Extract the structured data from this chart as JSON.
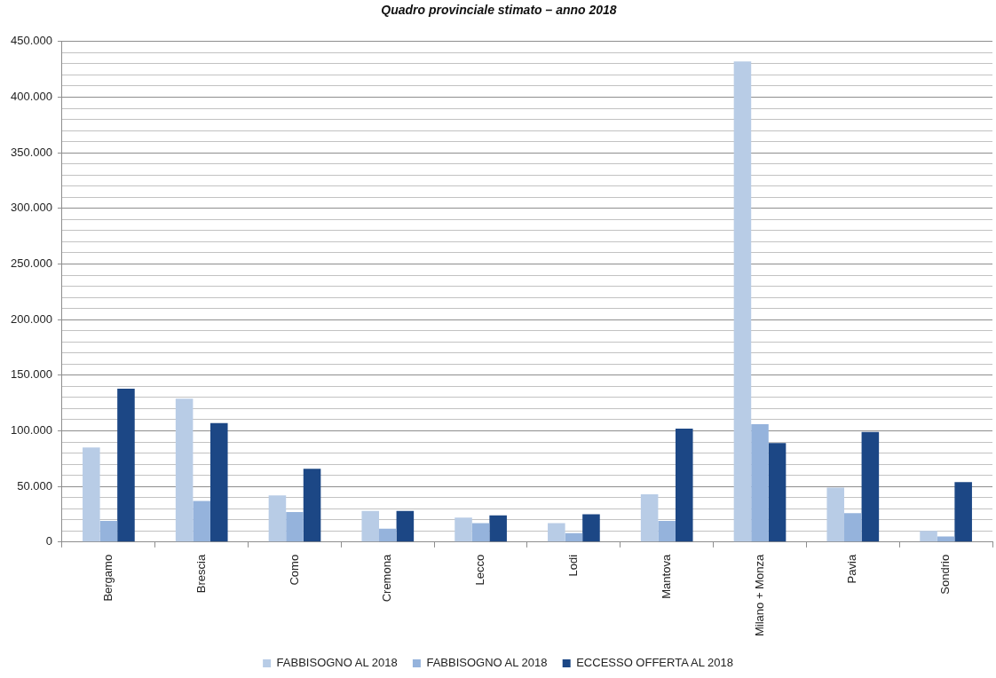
{
  "chart_data": {
    "type": "bar",
    "title": "Quadro provinciale stimato – anno 2018",
    "categories": [
      "Bergamo",
      "Brescia",
      "Como",
      "Cremona",
      "Lecco",
      "Lodi",
      "Mantova",
      "Milano + Monza",
      "Pavia",
      "Sondrio"
    ],
    "series": [
      {
        "name": "FABBISOGNO AL 2018",
        "color": "#b8cce6",
        "values": [
          85000,
          129000,
          42000,
          28000,
          22000,
          17000,
          43000,
          432000,
          49000,
          10000
        ]
      },
      {
        "name": "FABBISOGNO AL 2018",
        "color": "#95b3dc",
        "values": [
          19000,
          37000,
          27000,
          12000,
          17000,
          8000,
          19000,
          106000,
          26000,
          5000
        ]
      },
      {
        "name": "ECCESSO OFFERTA AL 2018",
        "color": "#1c4785",
        "values": [
          138000,
          107000,
          66000,
          28000,
          24000,
          25000,
          102000,
          89000,
          99000,
          54000
        ]
      }
    ],
    "ylim": [
      0,
      450000
    ],
    "yticks": [
      0,
      {
        "value": 10000,
        "label": null
      },
      {
        "value": 20000,
        "label": null
      },
      {
        "value": 30000,
        "label": null
      },
      {
        "value": 40000,
        "label": null
      },
      {
        "value": 50000,
        "label": "50.000"
      },
      {
        "value": 60000,
        "label": null
      },
      {
        "value": 70000,
        "label": null
      },
      {
        "value": 80000,
        "label": null
      },
      {
        "value": 90000,
        "label": null
      },
      {
        "value": 100000,
        "label": "100.000"
      },
      {
        "value": 110000,
        "label": null
      },
      {
        "value": 120000,
        "label": null
      },
      {
        "value": 130000,
        "label": null
      },
      {
        "value": 140000,
        "label": null
      },
      {
        "value": 150000,
        "label": "150.000"
      },
      {
        "value": 160000,
        "label": null
      },
      {
        "value": 170000,
        "label": null
      },
      {
        "value": 180000,
        "label": null
      },
      {
        "value": 190000,
        "label": null
      },
      {
        "value": 200000,
        "label": "200.000"
      },
      {
        "value": 210000,
        "label": null
      },
      {
        "value": 220000,
        "label": null
      },
      {
        "value": 230000,
        "label": null
      },
      {
        "value": 240000,
        "label": null
      },
      {
        "value": 250000,
        "label": "250.000"
      },
      {
        "value": 260000,
        "label": null
      },
      {
        "value": 270000,
        "label": null
      },
      {
        "value": 280000,
        "label": null
      },
      {
        "value": 290000,
        "label": null
      },
      {
        "value": 300000,
        "label": "300.000"
      },
      {
        "value": 310000,
        "label": null
      },
      {
        "value": 320000,
        "label": null
      },
      {
        "value": 330000,
        "label": null
      },
      {
        "value": 340000,
        "label": null
      },
      {
        "value": 350000,
        "label": "350.000"
      },
      {
        "value": 360000,
        "label": null
      },
      {
        "value": 370000,
        "label": null
      },
      {
        "value": 380000,
        "label": null
      },
      {
        "value": 390000,
        "label": null
      },
      {
        "value": 400000,
        "label": "400.000"
      },
      {
        "value": 410000,
        "label": null
      },
      {
        "value": 420000,
        "label": null
      },
      {
        "value": 430000,
        "label": null
      },
      {
        "value": 440000,
        "label": null
      },
      {
        "value": 450000,
        "label": "450.000"
      }
    ],
    "grid": "y",
    "legend": "bottom"
  }
}
